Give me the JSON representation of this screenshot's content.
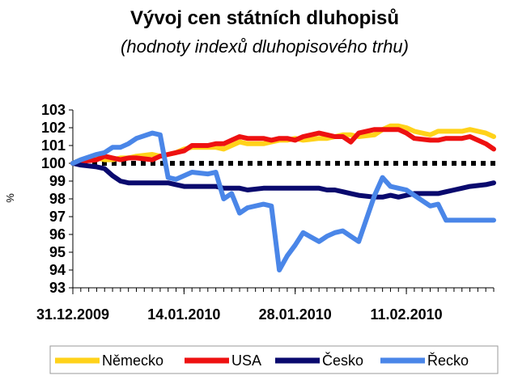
{
  "chart_data": {
    "type": "line",
    "title": "Vývoj cen státních dluhopisů",
    "subtitle": "(hodnoty indexů dluhopisového trhu)",
    "ylabel": "%",
    "ylim": [
      93,
      103
    ],
    "yticks": [
      103,
      102,
      101,
      100,
      99,
      98,
      97,
      96,
      95,
      94,
      93
    ],
    "x_labels": [
      "31.12.2009",
      "14.01.2010",
      "28.01.2010",
      "11.02.2010"
    ],
    "x_label_dates": [
      "2009-12-31",
      "2010-01-14",
      "2010-01-28",
      "2010-02-11"
    ],
    "reference_line": 100,
    "legend_position": "bottom",
    "series": [
      {
        "name": "Německo",
        "color": "#FFD21A",
        "x": [
          "2009-12-31",
          "2010-01-01",
          "2010-01-03",
          "2010-01-04",
          "2010-01-05",
          "2010-01-06",
          "2010-01-07",
          "2010-01-08",
          "2010-01-10",
          "2010-01-11",
          "2010-01-12",
          "2010-01-13",
          "2010-01-14",
          "2010-01-15",
          "2010-01-17",
          "2010-01-18",
          "2010-01-19",
          "2010-01-20",
          "2010-01-21",
          "2010-01-22",
          "2010-01-24",
          "2010-01-25",
          "2010-01-26",
          "2010-01-27",
          "2010-01-28",
          "2010-01-29",
          "2010-01-31",
          "2010-02-01",
          "2010-02-02",
          "2010-02-03",
          "2010-02-04",
          "2010-02-05",
          "2010-02-07",
          "2010-02-08",
          "2010-02-09",
          "2010-02-10",
          "2010-02-11",
          "2010-02-12",
          "2010-02-14",
          "2010-02-15",
          "2010-02-16",
          "2010-02-17",
          "2010-02-18",
          "2010-02-19",
          "2010-02-21",
          "2010-02-22"
        ],
        "values": [
          100.0,
          100.2,
          100.3,
          100.2,
          100.2,
          100.3,
          100.3,
          100.4,
          100.5,
          100.4,
          100.5,
          100.6,
          100.8,
          100.9,
          100.9,
          100.9,
          100.8,
          101.0,
          101.2,
          101.1,
          101.1,
          101.2,
          101.3,
          101.3,
          101.4,
          101.3,
          101.4,
          101.4,
          101.5,
          101.6,
          101.6,
          101.5,
          101.6,
          101.9,
          102.1,
          102.1,
          102.0,
          101.8,
          101.6,
          101.8,
          101.8,
          101.8,
          101.8,
          101.9,
          101.7,
          101.5
        ]
      },
      {
        "name": "USA",
        "color": "#EE1111",
        "x": [
          "2009-12-31",
          "2010-01-01",
          "2010-01-03",
          "2010-01-04",
          "2010-01-05",
          "2010-01-06",
          "2010-01-07",
          "2010-01-08",
          "2010-01-10",
          "2010-01-11",
          "2010-01-12",
          "2010-01-13",
          "2010-01-14",
          "2010-01-15",
          "2010-01-17",
          "2010-01-18",
          "2010-01-19",
          "2010-01-20",
          "2010-01-21",
          "2010-01-22",
          "2010-01-24",
          "2010-01-25",
          "2010-01-26",
          "2010-01-27",
          "2010-01-28",
          "2010-01-29",
          "2010-01-31",
          "2010-02-01",
          "2010-02-02",
          "2010-02-03",
          "2010-02-04",
          "2010-02-05",
          "2010-02-07",
          "2010-02-08",
          "2010-02-09",
          "2010-02-10",
          "2010-02-11",
          "2010-02-12",
          "2010-02-14",
          "2010-02-15",
          "2010-02-16",
          "2010-02-17",
          "2010-02-18",
          "2010-02-19",
          "2010-02-21",
          "2010-02-22"
        ],
        "values": [
          100.0,
          100.1,
          100.2,
          100.4,
          100.3,
          100.2,
          100.3,
          100.3,
          100.2,
          100.4,
          100.5,
          100.6,
          100.7,
          101.0,
          101.0,
          101.1,
          101.1,
          101.3,
          101.5,
          101.4,
          101.4,
          101.3,
          101.4,
          101.4,
          101.3,
          101.5,
          101.7,
          101.6,
          101.5,
          101.5,
          101.2,
          101.7,
          101.9,
          101.9,
          101.9,
          101.9,
          101.7,
          101.4,
          101.3,
          101.3,
          101.4,
          101.4,
          101.4,
          101.5,
          101.1,
          100.8
        ]
      },
      {
        "name": "Česko",
        "color": "#0A0A6E",
        "x": [
          "2009-12-31",
          "2010-01-01",
          "2010-01-03",
          "2010-01-04",
          "2010-01-05",
          "2010-01-06",
          "2010-01-07",
          "2010-01-08",
          "2010-01-10",
          "2010-01-11",
          "2010-01-12",
          "2010-01-13",
          "2010-01-14",
          "2010-01-15",
          "2010-01-17",
          "2010-01-18",
          "2010-01-19",
          "2010-01-20",
          "2010-01-21",
          "2010-01-22",
          "2010-01-24",
          "2010-01-25",
          "2010-01-26",
          "2010-01-27",
          "2010-01-28",
          "2010-01-29",
          "2010-01-31",
          "2010-02-01",
          "2010-02-02",
          "2010-02-03",
          "2010-02-04",
          "2010-02-05",
          "2010-02-07",
          "2010-02-08",
          "2010-02-09",
          "2010-02-10",
          "2010-02-11",
          "2010-02-12",
          "2010-02-14",
          "2010-02-15",
          "2010-02-16",
          "2010-02-17",
          "2010-02-18",
          "2010-02-19",
          "2010-02-21",
          "2010-02-22"
        ],
        "values": [
          100.0,
          99.9,
          99.8,
          99.7,
          99.3,
          99.0,
          98.9,
          98.9,
          98.9,
          98.9,
          98.9,
          98.8,
          98.7,
          98.7,
          98.7,
          98.7,
          98.6,
          98.6,
          98.6,
          98.5,
          98.6,
          98.6,
          98.6,
          98.6,
          98.6,
          98.6,
          98.6,
          98.5,
          98.5,
          98.4,
          98.3,
          98.2,
          98.1,
          98.1,
          98.2,
          98.1,
          98.2,
          98.3,
          98.3,
          98.3,
          98.4,
          98.5,
          98.6,
          98.7,
          98.8,
          98.9
        ]
      },
      {
        "name": "Řecko",
        "color": "#4A86E8",
        "x": [
          "2009-12-31",
          "2010-01-01",
          "2010-01-03",
          "2010-01-04",
          "2010-01-05",
          "2010-01-06",
          "2010-01-07",
          "2010-01-08",
          "2010-01-10",
          "2010-01-11",
          "2010-01-12",
          "2010-01-13",
          "2010-01-14",
          "2010-01-15",
          "2010-01-17",
          "2010-01-18",
          "2010-01-19",
          "2010-01-20",
          "2010-01-21",
          "2010-01-22",
          "2010-01-24",
          "2010-01-25",
          "2010-01-26",
          "2010-01-27",
          "2010-01-28",
          "2010-01-29",
          "2010-01-31",
          "2010-02-01",
          "2010-02-02",
          "2010-02-03",
          "2010-02-04",
          "2010-02-05",
          "2010-02-07",
          "2010-02-08",
          "2010-02-09",
          "2010-02-10",
          "2010-02-11",
          "2010-02-12",
          "2010-02-14",
          "2010-02-15",
          "2010-02-16",
          "2010-02-17",
          "2010-02-18",
          "2010-02-19",
          "2010-02-21",
          "2010-02-22"
        ],
        "values": [
          100.0,
          100.2,
          100.5,
          100.6,
          100.9,
          100.9,
          101.1,
          101.4,
          101.7,
          101.6,
          99.2,
          99.1,
          99.3,
          99.5,
          99.4,
          99.5,
          98.0,
          98.3,
          97.2,
          97.5,
          97.7,
          97.6,
          94.0,
          94.8,
          95.4,
          96.1,
          95.6,
          95.9,
          96.1,
          96.2,
          95.9,
          95.6,
          98.2,
          99.2,
          98.7,
          98.6,
          98.5,
          98.2,
          97.6,
          97.7,
          96.8,
          96.8,
          96.8,
          96.8,
          96.8,
          96.8
        ]
      }
    ]
  }
}
